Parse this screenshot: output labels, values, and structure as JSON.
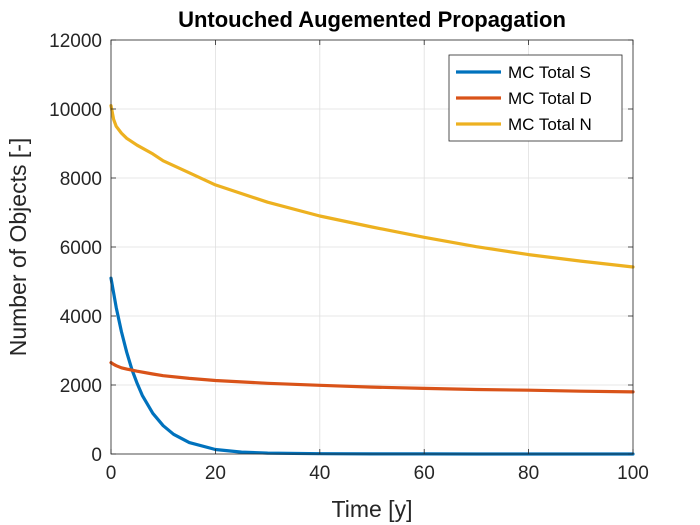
{
  "chart_data": {
    "type": "line",
    "title": "Untouched Augemented Propagation",
    "xlabel": "Time [y]",
    "ylabel": "Number of Objects [-]",
    "xlim": [
      0,
      100
    ],
    "ylim": [
      0,
      12000
    ],
    "grid": true,
    "x_ticks": [
      0,
      20,
      40,
      60,
      80,
      100
    ],
    "y_ticks": [
      0,
      2000,
      4000,
      6000,
      8000,
      10000,
      12000
    ],
    "legend_position": "top-right",
    "series": [
      {
        "name": "MC Total S",
        "color": "#0072BD",
        "x": [
          0,
          1,
          2,
          3,
          4,
          5,
          6,
          8,
          10,
          12,
          15,
          20,
          25,
          30,
          40,
          50,
          60,
          70,
          80,
          90,
          100
        ],
        "y": [
          5100,
          4250,
          3550,
          2950,
          2450,
          2050,
          1700,
          1180,
          820,
          570,
          330,
          130,
          55,
          25,
          8,
          3,
          2,
          1,
          1,
          1,
          1
        ]
      },
      {
        "name": "MC Total D",
        "color": "#D95319",
        "x": [
          0,
          0.5,
          1,
          2,
          3,
          5,
          8,
          10,
          15,
          20,
          30,
          40,
          50,
          60,
          70,
          80,
          90,
          100
        ],
        "y": [
          2650,
          2600,
          2560,
          2500,
          2460,
          2400,
          2320,
          2270,
          2190,
          2130,
          2050,
          1990,
          1940,
          1900,
          1870,
          1850,
          1820,
          1800
        ]
      },
      {
        "name": "MC Total N",
        "color": "#EDB120",
        "x": [
          0,
          0.5,
          1,
          2,
          3,
          5,
          8,
          10,
          15,
          20,
          30,
          40,
          50,
          60,
          70,
          80,
          90,
          100
        ],
        "y": [
          10100,
          9700,
          9500,
          9300,
          9150,
          8950,
          8700,
          8500,
          8150,
          7800,
          7300,
          6900,
          6580,
          6280,
          6010,
          5780,
          5590,
          5420
        ]
      }
    ]
  }
}
